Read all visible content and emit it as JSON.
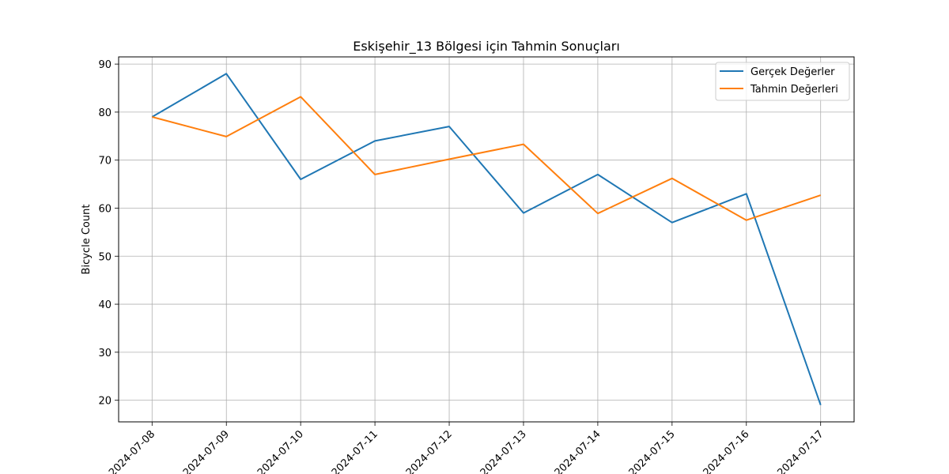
{
  "chart_data": {
    "type": "line",
    "title": "Eskişehir_13 Bölgesi için Tahmin Sonuçları",
    "xlabel": "",
    "ylabel": "Bicycle Count",
    "categories": [
      "2024-07-08",
      "2024-07-09",
      "2024-07-10",
      "2024-07-11",
      "2024-07-12",
      "2024-07-13",
      "2024-07-14",
      "2024-07-15",
      "2024-07-16",
      "2024-07-17"
    ],
    "series": [
      {
        "name": "Gerçek Değerler",
        "color": "#1f77b4",
        "values": [
          79,
          88,
          66,
          74,
          77,
          59,
          67,
          57,
          63,
          19
        ]
      },
      {
        "name": "Tahmin Değerleri",
        "color": "#ff7f0e",
        "values": [
          79,
          74.9,
          83.2,
          67,
          70.2,
          73.3,
          58.9,
          66.2,
          57.5,
          62.7
        ]
      }
    ],
    "yticks": [
      20,
      30,
      40,
      50,
      60,
      70,
      80,
      90
    ],
    "ylim": [
      15.5,
      91.5
    ],
    "grid": true,
    "legend_position": "top-right"
  }
}
